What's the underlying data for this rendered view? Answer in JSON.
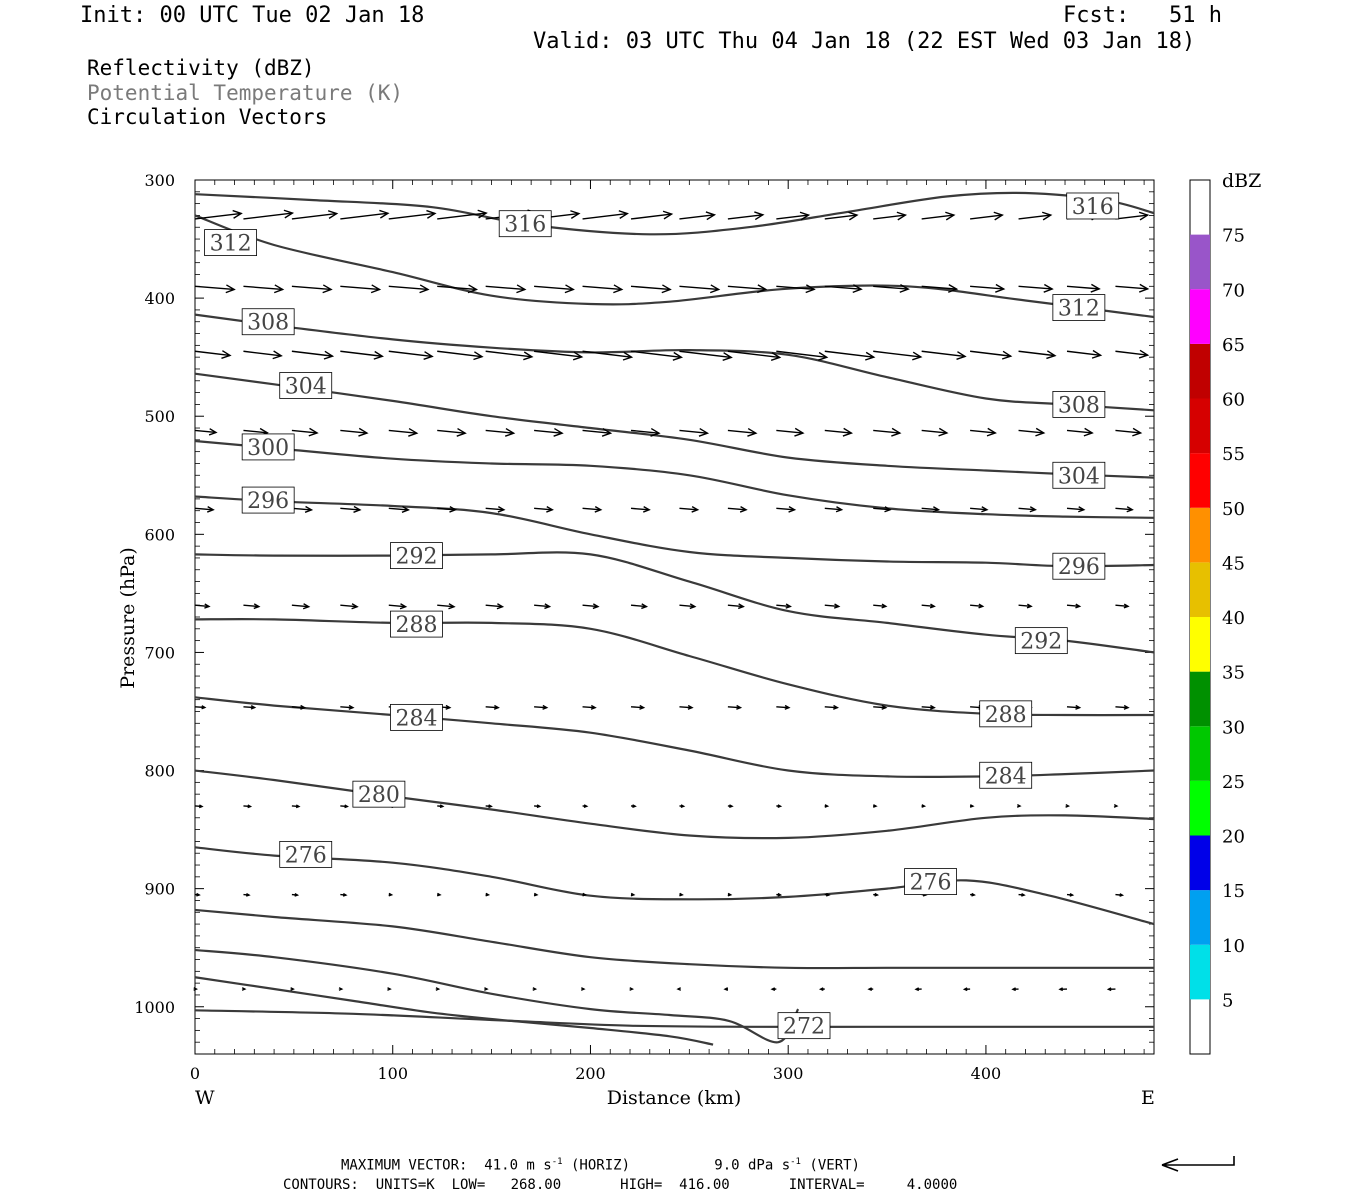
{
  "header": {
    "init": "Init: 00 UTC Tue 02 Jan 18",
    "fcst": "Fcst:   51 h",
    "valid": "Valid: 03 UTC Thu 04 Jan 18 (22 EST Wed 03 Jan 18)"
  },
  "legend": {
    "line1": "Reflectivity (dBZ)",
    "line2": "Potential Temperature (K)",
    "line3": "Circulation Vectors"
  },
  "footer": {
    "line1": "MAXIMUM VECTOR:  41.0 m s",
    "line1_sup": "-1",
    "line1_mid": " (HORIZ)          9.0 dPa s",
    "line1_sup2": "-1",
    "line1_end": " (VERT)",
    "line2": "CONTOURS:  UNITS=K  LOW=   268.00       HIGH=  416.00       INTERVAL=     4.0000"
  },
  "chart_data": {
    "type": "line",
    "xlabel": "Distance (km)",
    "ylabel": "Pressure (hPa)",
    "x_ticks": [
      "0",
      "100",
      "200",
      "300",
      "400"
    ],
    "y_ticks": [
      "300",
      "400",
      "500",
      "600",
      "700",
      "800",
      "900",
      "1000"
    ],
    "xlim": [
      0,
      485
    ],
    "ylim": [
      1040,
      300
    ],
    "y_inverted": true,
    "west_label": "W",
    "east_label": "E",
    "colorbar": {
      "title": "dBZ",
      "labels": [
        "5",
        "10",
        "15",
        "20",
        "25",
        "30",
        "35",
        "40",
        "45",
        "50",
        "55",
        "60",
        "65",
        "70",
        "75"
      ],
      "colors": [
        "#00e0e8",
        "#00a0f0",
        "#0000e8",
        "#00ff00",
        "#00c800",
        "#009000",
        "#ffff00",
        "#e7c000",
        "#ff9000",
        "#ff0000",
        "#d60000",
        "#c00000",
        "#ff00ff",
        "#9955c9"
      ]
    },
    "series": [
      {
        "label": "316",
        "x": [
          0,
          60,
          120,
          170,
          230,
          280,
          330,
          380,
          420,
          460,
          485
        ],
        "y": [
          312,
          317,
          323,
          338,
          346,
          340,
          327,
          314,
          311,
          317,
          328
        ],
        "labels_at": [
          [
            167,
            337
          ],
          [
            454,
            322
          ]
        ]
      },
      {
        "label": "312",
        "x": [
          0,
          40,
          100,
          150,
          200,
          240,
          300,
          360,
          420,
          485
        ],
        "y": [
          330,
          355,
          378,
          398,
          405,
          403,
          392,
          390,
          402,
          416
        ],
        "labels_at": [
          [
            18,
            353
          ],
          [
            447,
            408
          ]
        ]
      },
      {
        "label": "308",
        "x": [
          0,
          40,
          100,
          150,
          200,
          250,
          300,
          350,
          400,
          440,
          485
        ],
        "y": [
          414,
          423,
          435,
          442,
          446,
          444,
          448,
          467,
          485,
          490,
          495
        ],
        "labels_at": [
          [
            37,
            420
          ],
          [
            447,
            490
          ]
        ]
      },
      {
        "label": "304",
        "x": [
          0,
          40,
          100,
          150,
          200,
          250,
          300,
          350,
          400,
          440,
          485
        ],
        "y": [
          464,
          473,
          487,
          500,
          510,
          520,
          535,
          542,
          546,
          549,
          552
        ],
        "labels_at": [
          [
            56,
            474
          ],
          [
            447,
            550
          ]
        ]
      },
      {
        "label": "300",
        "x": [
          0,
          40,
          100,
          150,
          200,
          250,
          300,
          350,
          400,
          440,
          485
        ],
        "y": [
          521,
          527,
          536,
          540,
          542,
          550,
          567,
          578,
          583,
          585,
          586
        ],
        "labels_at": [
          [
            37,
            526
          ]
        ]
      },
      {
        "label": "296",
        "x": [
          0,
          40,
          100,
          150,
          200,
          250,
          300,
          350,
          400,
          440,
          485
        ],
        "y": [
          568,
          572,
          576,
          582,
          600,
          615,
          620,
          623,
          624,
          627,
          626
        ],
        "labels_at": [
          [
            37,
            571
          ],
          [
            447,
            627
          ]
        ]
      },
      {
        "label": "292",
        "x": [
          0,
          40,
          100,
          150,
          200,
          250,
          300,
          350,
          400,
          440,
          485
        ],
        "y": [
          617,
          618,
          618,
          617,
          617,
          640,
          665,
          675,
          685,
          690,
          700
        ],
        "labels_at": [
          [
            112,
            618
          ],
          [
            428,
            690
          ]
        ]
      },
      {
        "label": "288",
        "x": [
          0,
          40,
          100,
          150,
          200,
          250,
          300,
          350,
          400,
          440,
          485
        ],
        "y": [
          672,
          672,
          675,
          675,
          680,
          703,
          727,
          745,
          752,
          753,
          753
        ],
        "labels_at": [
          [
            112,
            676
          ],
          [
            410,
            752
          ]
        ]
      },
      {
        "label": "284",
        "x": [
          0,
          40,
          100,
          150,
          200,
          250,
          300,
          350,
          400,
          440,
          485
        ],
        "y": [
          738,
          745,
          753,
          760,
          768,
          783,
          800,
          805,
          805,
          803,
          800
        ],
        "labels_at": [
          [
            112,
            755
          ],
          [
            410,
            804
          ]
        ]
      },
      {
        "label": "280",
        "x": [
          0,
          40,
          100,
          150,
          200,
          250,
          300,
          350,
          400,
          440,
          485
        ],
        "y": [
          800,
          808,
          822,
          833,
          845,
          855,
          857,
          851,
          840,
          838,
          841
        ],
        "labels_at": [
          [
            93,
            820
          ]
        ]
      },
      {
        "label": "276",
        "x": [
          0,
          40,
          100,
          150,
          200,
          250,
          300,
          350,
          390,
          430,
          485
        ],
        "y": [
          865,
          872,
          878,
          890,
          906,
          909,
          907,
          900,
          893,
          905,
          930
        ],
        "labels_at": [
          [
            56,
            871
          ],
          [
            372,
            894
          ]
        ]
      },
      {
        "label": "",
        "x": [
          0,
          40,
          100,
          150,
          200,
          250,
          300,
          350,
          400,
          440,
          485
        ],
        "y": [
          918,
          924,
          932,
          945,
          958,
          964,
          967,
          967,
          967,
          967,
          967
        ],
        "labels_at": []
      },
      {
        "label": "",
        "x": [
          0,
          40,
          100,
          150,
          200,
          240,
          270,
          295,
          305
        ],
        "y": [
          952,
          958,
          972,
          989,
          1002,
          1007,
          1012,
          1030,
          1002
        ],
        "labels_at": []
      },
      {
        "label": "",
        "x": [
          0,
          40,
          80,
          120,
          160,
          200,
          240,
          262
        ],
        "y": [
          975,
          985,
          995,
          1005,
          1012,
          1018,
          1025,
          1032
        ],
        "labels_at": []
      },
      {
        "label": "272",
        "x": [
          0,
          80,
          160,
          220,
          280,
          340,
          400,
          485
        ],
        "y": [
          1003,
          1006,
          1012,
          1016,
          1017,
          1017,
          1017,
          1017
        ],
        "labels_at": [
          [
            308,
            1016
          ]
        ]
      }
    ]
  }
}
